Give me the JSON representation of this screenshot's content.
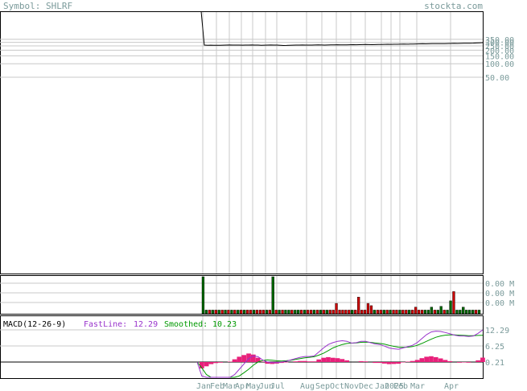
{
  "header": {
    "symbol_text": "Symbol: SHLRF",
    "brand_text": "stockta.com"
  },
  "colors": {
    "grid": "#c8c8c8",
    "axis_text": "#7a9a9a",
    "price_line": "#000000",
    "volume_up": "#006600",
    "volume_down": "#cc0000",
    "fast_line": "#9933cc",
    "smoothed_line": "#009900",
    "histogram": "#e8207a"
  },
  "chart_data": [
    {
      "type": "line",
      "title": "",
      "y_tick_labels": [
        "250.00",
        "200.00",
        "150.00",
        "100.00",
        "50.00"
      ],
      "overlap_tick_labels": [
        "350.00",
        "300.00"
      ],
      "x_tick_labels": [
        "Jan",
        "Feb",
        "Mar",
        "Apr",
        "May",
        "Jun",
        "Jul",
        "Aug",
        "Sep",
        "Oct",
        "Nov",
        "Dec",
        "Jan",
        "2025",
        "Feb",
        "Mar",
        "Apr"
      ],
      "series": [
        {
          "values": [
            1500,
            260,
            258,
            259,
            258,
            257,
            258,
            259,
            261,
            262,
            261,
            260,
            261,
            259,
            260,
            261,
            262,
            261,
            260,
            258,
            259,
            260,
            262,
            261,
            260,
            258,
            255,
            256,
            258,
            259,
            260,
            261,
            262,
            261,
            260,
            261,
            262,
            263,
            262,
            261,
            262,
            263,
            264,
            265,
            264,
            263,
            264,
            265,
            266,
            265,
            266,
            267,
            268,
            267,
            266,
            267,
            268,
            269,
            270,
            271,
            270,
            271,
            272,
            273,
            274,
            273,
            274,
            275,
            276,
            277,
            278,
            277,
            278,
            279,
            280,
            281,
            280,
            281,
            282,
            283,
            284,
            283,
            284,
            285,
            286,
            287,
            288,
            290,
            292,
            295
          ]
        }
      ],
      "y_axis": "log"
    },
    {
      "type": "bar",
      "title": "",
      "y_tick_labels": [
        "0.00 M",
        "0.00 M",
        "0.00 M"
      ],
      "bars": [
        {
          "v": 1.0,
          "up": true
        },
        {
          "v": 0.1,
          "up": true
        },
        {
          "v": 0.1,
          "up": false
        },
        {
          "v": 0.1,
          "up": true
        },
        {
          "v": 0.1,
          "up": false
        },
        {
          "v": 0.1,
          "up": true
        },
        {
          "v": 0.1,
          "up": false
        },
        {
          "v": 0.1,
          "up": true
        },
        {
          "v": 0.1,
          "up": false
        },
        {
          "v": 0.1,
          "up": true
        },
        {
          "v": 0.1,
          "up": false
        },
        {
          "v": 0.1,
          "up": true
        },
        {
          "v": 0.1,
          "up": false
        },
        {
          "v": 0.1,
          "up": true
        },
        {
          "v": 0.1,
          "up": false
        },
        {
          "v": 0.1,
          "up": false
        },
        {
          "v": 0.1,
          "up": true
        },
        {
          "v": 0.1,
          "up": false
        },
        {
          "v": 0.1,
          "up": false
        },
        {
          "v": 0.1,
          "up": false
        },
        {
          "v": 0.1,
          "up": true
        },
        {
          "v": 0.1,
          "up": false
        },
        {
          "v": 1.0,
          "up": true
        },
        {
          "v": 0.1,
          "up": false
        },
        {
          "v": 0.1,
          "up": true
        },
        {
          "v": 0.1,
          "up": false
        },
        {
          "v": 0.1,
          "up": true
        },
        {
          "v": 0.1,
          "up": true
        },
        {
          "v": 0.1,
          "up": false
        },
        {
          "v": 0.1,
          "up": true
        },
        {
          "v": 0.1,
          "up": true
        },
        {
          "v": 0.1,
          "up": false
        },
        {
          "v": 0.1,
          "up": true
        },
        {
          "v": 0.1,
          "up": false
        },
        {
          "v": 0.1,
          "up": false
        },
        {
          "v": 0.1,
          "up": true
        },
        {
          "v": 0.1,
          "up": false
        },
        {
          "v": 0.1,
          "up": true
        },
        {
          "v": 0.1,
          "up": false
        },
        {
          "v": 0.1,
          "up": true
        },
        {
          "v": 0.1,
          "up": false
        },
        {
          "v": 0.1,
          "up": false
        },
        {
          "v": 0.28,
          "up": false
        },
        {
          "v": 0.1,
          "up": false
        },
        {
          "v": 0.1,
          "up": false
        },
        {
          "v": 0.1,
          "up": false
        },
        {
          "v": 0.1,
          "up": false
        },
        {
          "v": 0.1,
          "up": true
        },
        {
          "v": 0.1,
          "up": false
        },
        {
          "v": 0.45,
          "up": false
        },
        {
          "v": 0.1,
          "up": false
        },
        {
          "v": 0.1,
          "up": false
        },
        {
          "v": 0.28,
          "up": false
        },
        {
          "v": 0.22,
          "up": false
        },
        {
          "v": 0.1,
          "up": true
        },
        {
          "v": 0.1,
          "up": false
        },
        {
          "v": 0.1,
          "up": false
        },
        {
          "v": 0.1,
          "up": true
        },
        {
          "v": 0.1,
          "up": false
        },
        {
          "v": 0.1,
          "up": true
        },
        {
          "v": 0.1,
          "up": false
        },
        {
          "v": 0.1,
          "up": false
        },
        {
          "v": 0.1,
          "up": true
        },
        {
          "v": 0.1,
          "up": false
        },
        {
          "v": 0.1,
          "up": false
        },
        {
          "v": 0.1,
          "up": true
        },
        {
          "v": 0.1,
          "up": false
        },
        {
          "v": 0.18,
          "up": false
        },
        {
          "v": 0.1,
          "up": false
        },
        {
          "v": 0.1,
          "up": false
        },
        {
          "v": 0.1,
          "up": true
        },
        {
          "v": 0.1,
          "up": true
        },
        {
          "v": 0.18,
          "up": true
        },
        {
          "v": 0.1,
          "up": false
        },
        {
          "v": 0.1,
          "up": true
        },
        {
          "v": 0.2,
          "up": true
        },
        {
          "v": 0.1,
          "up": false
        },
        {
          "v": 0.1,
          "up": true
        },
        {
          "v": 0.35,
          "up": true
        },
        {
          "v": 0.6,
          "up": false
        },
        {
          "v": 0.1,
          "up": true
        },
        {
          "v": 0.1,
          "up": true
        },
        {
          "v": 0.18,
          "up": true
        },
        {
          "v": 0.1,
          "up": true
        },
        {
          "v": 0.1,
          "up": true
        },
        {
          "v": 0.1,
          "up": true
        },
        {
          "v": 0.1,
          "up": false
        },
        {
          "v": 0.1,
          "up": true
        }
      ]
    },
    {
      "type": "line",
      "title": "MACD(12-26-9)",
      "legend": [
        {
          "label": "FastLine:",
          "value": "12.29"
        },
        {
          "label": "Smoothed:",
          "value": "10.23"
        }
      ],
      "y_tick_labels": [
        "12.29",
        "6.25",
        "0.21"
      ],
      "series": [
        {
          "name": "FastLine",
          "values": [
            0.21,
            -5,
            -6.5,
            -7,
            -7,
            -6.8,
            -6.5,
            -6.0,
            -4.5,
            -2.5,
            -0.5,
            1.5,
            2.5,
            2.2,
            1.0,
            0.2,
            0.0,
            0.0,
            0.2,
            0.5,
            1.0,
            1.5,
            2.0,
            2.3,
            2.3,
            2.5,
            4.0,
            5.5,
            6.8,
            7.5,
            8.0,
            8.2,
            8.0,
            7.3,
            7.5,
            8.0,
            8.0,
            7.5,
            7.0,
            6.8,
            6.2,
            5.5,
            5.2,
            5.0,
            5.5,
            6.0,
            6.5,
            7.5,
            9.0,
            10.5,
            11.5,
            11.8,
            11.7,
            11.3,
            10.8,
            10.3,
            10.0,
            10.0,
            9.8,
            10.0,
            11.0,
            12.29
          ]
        },
        {
          "name": "Smoothed",
          "values": [
            0.21,
            -2,
            -4.5,
            -6,
            -6.5,
            -6.5,
            -6.4,
            -6.2,
            -5.8,
            -5.0,
            -3.8,
            -2.5,
            -1.0,
            0.2,
            0.8,
            1.0,
            0.9,
            0.7,
            0.6,
            0.7,
            0.9,
            1.2,
            1.5,
            1.8,
            2.0,
            2.2,
            2.8,
            3.5,
            4.5,
            5.5,
            6.2,
            6.8,
            7.2,
            7.3,
            7.4,
            7.6,
            7.7,
            7.6,
            7.4,
            7.2,
            6.9,
            6.5,
            6.1,
            5.8,
            5.7,
            5.8,
            6.0,
            6.5,
            7.2,
            8.0,
            8.8,
            9.5,
            10.0,
            10.3,
            10.4,
            10.4,
            10.3,
            10.2,
            10.1,
            10.1,
            10.2,
            10.23
          ]
        }
      ]
    }
  ]
}
